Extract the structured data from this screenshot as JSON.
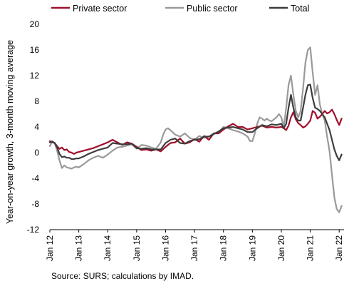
{
  "chart_data": {
    "type": "line",
    "ylabel": "Year-on-year growth, 3-month moving average",
    "xlabel": "",
    "ylim": [
      -12,
      20
    ],
    "yticks": [
      "20",
      "16",
      "12",
      "8",
      "4",
      "0",
      "-4",
      "-8",
      "-12"
    ],
    "xticks": [
      "Jan 12",
      "Jan 13",
      "Jan 14",
      "Jan 15",
      "Jan 16",
      "Jan 17",
      "Jan 18",
      "Jan 19",
      "Jan 20",
      "Jan 21",
      "Jan 22"
    ],
    "x_start": "Jan 2012",
    "x_end": "Apr 2022",
    "legend_position": "top",
    "source": "Source: SURS; calculations by IMAD.",
    "series": [
      {
        "name": "Private sector",
        "color": "#a0102a",
        "points": [
          [
            0,
            1.8
          ],
          [
            1,
            1.6
          ],
          [
            2,
            1.5
          ],
          [
            3,
            1.0
          ],
          [
            4,
            0.6
          ],
          [
            5,
            0.8
          ],
          [
            6,
            0.4
          ],
          [
            7,
            0.5
          ],
          [
            8,
            0.1
          ],
          [
            9,
            0.0
          ],
          [
            10,
            -0.2
          ],
          [
            11,
            0.0
          ],
          [
            12,
            0.1
          ],
          [
            14,
            0.3
          ],
          [
            16,
            0.5
          ],
          [
            18,
            0.7
          ],
          [
            20,
            1.0
          ],
          [
            22,
            1.3
          ],
          [
            24,
            1.6
          ],
          [
            26,
            2.0
          ],
          [
            28,
            1.6
          ],
          [
            30,
            1.2
          ],
          [
            32,
            1.6
          ],
          [
            34,
            1.4
          ],
          [
            36,
            0.9
          ],
          [
            38,
            0.4
          ],
          [
            40,
            0.5
          ],
          [
            42,
            0.3
          ],
          [
            44,
            0.5
          ],
          [
            46,
            0.2
          ],
          [
            48,
            0.9
          ],
          [
            50,
            1.5
          ],
          [
            52,
            1.6
          ],
          [
            54,
            2.2
          ],
          [
            56,
            1.4
          ],
          [
            58,
            1.6
          ],
          [
            60,
            2.1
          ],
          [
            62,
            1.7
          ],
          [
            64,
            2.6
          ],
          [
            66,
            2.0
          ],
          [
            68,
            3.0
          ],
          [
            70,
            3.0
          ],
          [
            72,
            3.6
          ],
          [
            74,
            4.1
          ],
          [
            76,
            4.5
          ],
          [
            78,
            4.0
          ],
          [
            80,
            4.0
          ],
          [
            82,
            3.6
          ],
          [
            84,
            3.8
          ],
          [
            86,
            4.0
          ],
          [
            88,
            4.2
          ],
          [
            90,
            3.9
          ],
          [
            92,
            4.0
          ],
          [
            94,
            3.9
          ],
          [
            96,
            4.0
          ],
          [
            97,
            3.8
          ],
          [
            98,
            3.5
          ],
          [
            99,
            4.2
          ],
          [
            100,
            5.5
          ],
          [
            101,
            6.3
          ],
          [
            102,
            5.2
          ],
          [
            103,
            4.6
          ],
          [
            104,
            4.3
          ],
          [
            105,
            3.9
          ],
          [
            106,
            4.1
          ],
          [
            107,
            4.5
          ],
          [
            108,
            5.0
          ],
          [
            109,
            6.5
          ],
          [
            110,
            6.2
          ],
          [
            111,
            5.3
          ],
          [
            112,
            5.6
          ],
          [
            113,
            6.0
          ],
          [
            114,
            6.5
          ],
          [
            115,
            6.1
          ],
          [
            116,
            6.3
          ],
          [
            117,
            6.7
          ],
          [
            118,
            6.0
          ],
          [
            119,
            5.1
          ],
          [
            120,
            4.3
          ],
          [
            121,
            5.3
          ]
        ]
      },
      {
        "name": "Public sector",
        "color": "#9a9a9a",
        "points": [
          [
            0,
            1.0
          ],
          [
            1,
            1.8
          ],
          [
            2,
            1.5
          ],
          [
            3,
            0.3
          ],
          [
            4,
            -1.2
          ],
          [
            5,
            -2.4
          ],
          [
            6,
            -2.0
          ],
          [
            7,
            -2.3
          ],
          [
            8,
            -2.4
          ],
          [
            9,
            -2.5
          ],
          [
            10,
            -2.3
          ],
          [
            11,
            -2.2
          ],
          [
            12,
            -2.3
          ],
          [
            14,
            -1.8
          ],
          [
            16,
            -1.2
          ],
          [
            18,
            -0.8
          ],
          [
            20,
            -0.5
          ],
          [
            22,
            -0.8
          ],
          [
            24,
            -0.3
          ],
          [
            26,
            0.3
          ],
          [
            28,
            0.8
          ],
          [
            30,
            0.9
          ],
          [
            32,
            1.1
          ],
          [
            34,
            1.3
          ],
          [
            36,
            0.6
          ],
          [
            38,
            1.2
          ],
          [
            40,
            1.1
          ],
          [
            42,
            0.8
          ],
          [
            44,
            0.6
          ],
          [
            46,
            1.6
          ],
          [
            47,
            2.8
          ],
          [
            48,
            3.6
          ],
          [
            49,
            3.8
          ],
          [
            50,
            3.5
          ],
          [
            52,
            2.8
          ],
          [
            54,
            2.5
          ],
          [
            56,
            3.0
          ],
          [
            58,
            2.3
          ],
          [
            60,
            2.0
          ],
          [
            62,
            2.6
          ],
          [
            64,
            2.3
          ],
          [
            66,
            2.5
          ],
          [
            68,
            3.0
          ],
          [
            70,
            3.1
          ],
          [
            72,
            4.0
          ],
          [
            74,
            3.8
          ],
          [
            76,
            3.5
          ],
          [
            78,
            3.3
          ],
          [
            80,
            3.0
          ],
          [
            82,
            2.5
          ],
          [
            83,
            1.8
          ],
          [
            84,
            1.8
          ],
          [
            85,
            3.0
          ],
          [
            86,
            4.5
          ],
          [
            87,
            5.5
          ],
          [
            88,
            5.3
          ],
          [
            89,
            5.0
          ],
          [
            90,
            5.3
          ],
          [
            91,
            5.0
          ],
          [
            92,
            4.9
          ],
          [
            93,
            5.2
          ],
          [
            94,
            5.5
          ],
          [
            95,
            6.0
          ],
          [
            96,
            5.5
          ],
          [
            97,
            4.0
          ],
          [
            98,
            7.0
          ],
          [
            99,
            10.5
          ],
          [
            100,
            12.0
          ],
          [
            101,
            9.0
          ],
          [
            102,
            6.5
          ],
          [
            103,
            5.5
          ],
          [
            104,
            6.5
          ],
          [
            105,
            10.0
          ],
          [
            106,
            14.0
          ],
          [
            107,
            16.0
          ],
          [
            108,
            16.4
          ],
          [
            109,
            12.5
          ],
          [
            110,
            9.0
          ],
          [
            111,
            10.5
          ],
          [
            112,
            7.5
          ],
          [
            113,
            6.0
          ],
          [
            114,
            5.0
          ],
          [
            115,
            2.5
          ],
          [
            116,
            0.2
          ],
          [
            117,
            -3.5
          ],
          [
            118,
            -7.0
          ],
          [
            119,
            -8.8
          ],
          [
            120,
            -9.3
          ],
          [
            121,
            -8.3
          ]
        ]
      },
      {
        "name": "Total",
        "color": "#3d3d3d",
        "points": [
          [
            0,
            1.6
          ],
          [
            1,
            1.7
          ],
          [
            2,
            1.5
          ],
          [
            3,
            0.8
          ],
          [
            4,
            -0.2
          ],
          [
            5,
            -0.7
          ],
          [
            6,
            -0.6
          ],
          [
            7,
            -0.8
          ],
          [
            8,
            -0.8
          ],
          [
            9,
            -1.0
          ],
          [
            10,
            -1.0
          ],
          [
            11,
            -0.9
          ],
          [
            12,
            -0.9
          ],
          [
            14,
            -0.6
          ],
          [
            16,
            -0.2
          ],
          [
            18,
            0.1
          ],
          [
            20,
            0.4
          ],
          [
            22,
            0.6
          ],
          [
            24,
            0.8
          ],
          [
            26,
            1.5
          ],
          [
            28,
            1.4
          ],
          [
            30,
            1.3
          ],
          [
            32,
            1.3
          ],
          [
            34,
            1.4
          ],
          [
            36,
            0.7
          ],
          [
            38,
            0.6
          ],
          [
            40,
            0.7
          ],
          [
            42,
            0.5
          ],
          [
            44,
            0.5
          ],
          [
            46,
            0.5
          ],
          [
            48,
            1.5
          ],
          [
            50,
            2.0
          ],
          [
            52,
            2.2
          ],
          [
            54,
            1.5
          ],
          [
            56,
            1.4
          ],
          [
            58,
            1.8
          ],
          [
            60,
            2.0
          ],
          [
            62,
            2.1
          ],
          [
            64,
            2.5
          ],
          [
            66,
            2.5
          ],
          [
            68,
            2.9
          ],
          [
            70,
            3.3
          ],
          [
            72,
            3.8
          ],
          [
            74,
            3.9
          ],
          [
            76,
            4.0
          ],
          [
            78,
            3.8
          ],
          [
            80,
            3.6
          ],
          [
            82,
            3.2
          ],
          [
            84,
            3.2
          ],
          [
            86,
            3.8
          ],
          [
            88,
            4.3
          ],
          [
            90,
            4.1
          ],
          [
            92,
            4.4
          ],
          [
            94,
            4.3
          ],
          [
            96,
            4.5
          ],
          [
            97,
            3.8
          ],
          [
            98,
            4.5
          ],
          [
            99,
            7.0
          ],
          [
            100,
            9.0
          ],
          [
            101,
            7.0
          ],
          [
            102,
            5.5
          ],
          [
            103,
            5.0
          ],
          [
            104,
            5.0
          ],
          [
            105,
            7.0
          ],
          [
            106,
            9.0
          ],
          [
            107,
            10.5
          ],
          [
            108,
            10.6
          ],
          [
            109,
            8.5
          ],
          [
            110,
            7.0
          ],
          [
            111,
            6.8
          ],
          [
            112,
            6.5
          ],
          [
            113,
            6.0
          ],
          [
            114,
            5.5
          ],
          [
            115,
            4.5
          ],
          [
            116,
            3.5
          ],
          [
            117,
            2.0
          ],
          [
            118,
            0.5
          ],
          [
            119,
            -0.5
          ],
          [
            120,
            -1.2
          ],
          [
            121,
            -0.3
          ]
        ]
      }
    ]
  }
}
